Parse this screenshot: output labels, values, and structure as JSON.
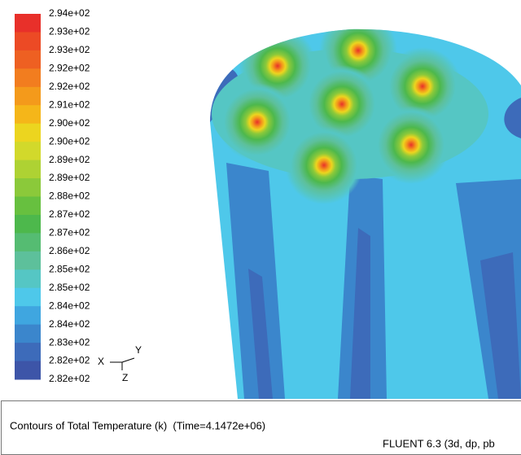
{
  "colorbar": {
    "labels": [
      "2.94e+02",
      "2.93e+02",
      "2.93e+02",
      "2.92e+02",
      "2.92e+02",
      "2.91e+02",
      "2.90e+02",
      "2.90e+02",
      "2.89e+02",
      "2.89e+02",
      "2.88e+02",
      "2.87e+02",
      "2.87e+02",
      "2.86e+02",
      "2.85e+02",
      "2.85e+02",
      "2.84e+02",
      "2.84e+02",
      "2.83e+02",
      "2.82e+02",
      "2.82e+02"
    ]
  },
  "axes": {
    "x": "X",
    "y": "Y",
    "z": "Z"
  },
  "footer": {
    "title": "Contours of Total Temperature (k)  (Time=4.1472e+06)",
    "version": "FLUENT 6.3 (3d, dp, pb"
  }
}
